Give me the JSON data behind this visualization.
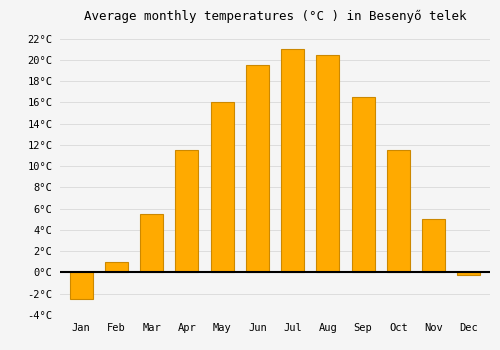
{
  "title": "Average monthly temperatures (°C ) in Besenyő telek",
  "months": [
    "Jan",
    "Feb",
    "Mar",
    "Apr",
    "May",
    "Jun",
    "Jul",
    "Aug",
    "Sep",
    "Oct",
    "Nov",
    "Dec"
  ],
  "values": [
    -2.5,
    1.0,
    5.5,
    11.5,
    16.0,
    19.5,
    21.0,
    20.5,
    16.5,
    11.5,
    5.0,
    -0.2
  ],
  "bar_color": "#FFAA00",
  "bar_edge_color": "#CC8800",
  "background_color": "#F5F5F5",
  "grid_color": "#DDDDDD",
  "ylim": [
    -4,
    23
  ],
  "yticks": [
    -4,
    -2,
    0,
    2,
    4,
    6,
    8,
    10,
    12,
    14,
    16,
    18,
    20,
    22
  ],
  "ytick_labels": [
    "-4°C",
    "-2°C",
    "0°C",
    "2°C",
    "4°C",
    "6°C",
    "8°C",
    "10°C",
    "12°C",
    "14°C",
    "16°C",
    "18°C",
    "20°C",
    "22°C"
  ],
  "zero_line_color": "#000000",
  "title_fontsize": 9,
  "tick_fontsize": 7.5,
  "font_family": "monospace"
}
